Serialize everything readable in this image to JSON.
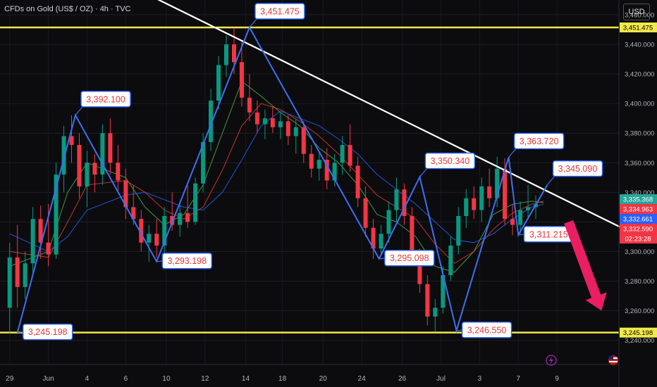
{
  "header": {
    "title": "CFDs on Gold (US$ / OZ) · 4h · TVC",
    "currency": "USD"
  },
  "chart_data": {
    "type": "candlestick",
    "ylim": [
      3236,
      3470
    ],
    "xlim": [
      -0.5,
      31.5
    ],
    "y_ticks": [
      3240,
      3260,
      3280,
      3300,
      3320,
      3340,
      3360,
      3380,
      3400,
      3420,
      3440,
      3460
    ],
    "y_tick_labels": [
      "3,240.000",
      "3,260.000",
      "3,280.000",
      "3,300.000",
      "3,320.000",
      "3,340.000",
      "3,360.000",
      "3,380.000",
      "3,400.000",
      "3,420.000",
      "3,440.000",
      "3,460.000"
    ],
    "x_ticks": [
      {
        "pos": 0,
        "label": "29"
      },
      {
        "pos": 2,
        "label": "Jun"
      },
      {
        "pos": 4,
        "label": "4"
      },
      {
        "pos": 6,
        "label": "6"
      },
      {
        "pos": 8.1,
        "label": "10"
      },
      {
        "pos": 10.1,
        "label": "12"
      },
      {
        "pos": 12.2,
        "label": "14"
      },
      {
        "pos": 14.1,
        "label": "18"
      },
      {
        "pos": 16.2,
        "label": "20"
      },
      {
        "pos": 18.2,
        "label": "24"
      },
      {
        "pos": 20.3,
        "label": "26"
      },
      {
        "pos": 22.3,
        "label": "Jul"
      },
      {
        "pos": 24.3,
        "label": "3"
      },
      {
        "pos": 26.3,
        "label": "7"
      },
      {
        "pos": 28.3,
        "label": "9"
      }
    ],
    "horizontal_levels": [
      {
        "value": 3451.475,
        "label": "3,451.475",
        "color": "#f2e84a"
      },
      {
        "value": 3245.198,
        "label": "3,245.198",
        "color": "#f2e84a"
      }
    ],
    "price_badges": [
      {
        "value": 3335.368,
        "label": "3,335.368",
        "bg": "#26a69a",
        "fg": "#ffffff"
      },
      {
        "value": 3334.963,
        "label": "3,334.963",
        "bg": "#f23645",
        "fg": "#ffffff"
      },
      {
        "value": 3332.661,
        "label": "3,332.661",
        "bg": "#2962ff",
        "fg": "#ffffff"
      },
      {
        "value": 3332.59,
        "label": "3,332.590",
        "bg": "#f23645",
        "fg": "#ffffff"
      }
    ],
    "countdown": "02:23:28",
    "trendline": {
      "from": [
        -0.2,
        3521
      ],
      "to": [
        31.8,
        3315
      ],
      "color": "#ffffff"
    },
    "zigzag": {
      "color": "#3d6ff5",
      "points": [
        {
          "x": 0.4,
          "y": 3245.198,
          "label": "3,245.198"
        },
        {
          "x": 3.4,
          "y": 3392.1,
          "label": "3,392.100"
        },
        {
          "x": 7.6,
          "y": 3293.198,
          "label": "3,293.198"
        },
        {
          "x": 12.4,
          "y": 3451.475,
          "label": "3,451.475"
        },
        {
          "x": 19.1,
          "y": 3295.098,
          "label": "3,295.098"
        },
        {
          "x": 21.2,
          "y": 3350.34,
          "label": "3,350.340"
        },
        {
          "x": 23.1,
          "y": 3246.55,
          "label": "3,246.550"
        },
        {
          "x": 25.8,
          "y": 3363.72,
          "label": "3,363.720"
        },
        {
          "x": 26.3,
          "y": 3311.215,
          "label": "3,311.215"
        },
        {
          "x": 27.8,
          "y": 3345.09,
          "label": "3,345.090"
        }
      ]
    },
    "forecast_arrow": {
      "from": [
        28.9,
        3320
      ],
      "to": [
        30.6,
        3260
      ],
      "color": "#e91e63"
    },
    "candles": [
      {
        "x": 0,
        "o": 3262,
        "h": 3306,
        "l": 3245,
        "c": 3296
      },
      {
        "x": 0.4,
        "o": 3296,
        "h": 3318,
        "l": 3262,
        "c": 3276
      },
      {
        "x": 0.8,
        "o": 3276,
        "h": 3300,
        "l": 3268,
        "c": 3292
      },
      {
        "x": 1.2,
        "o": 3292,
        "h": 3330,
        "l": 3284,
        "c": 3322
      },
      {
        "x": 1.6,
        "o": 3322,
        "h": 3331,
        "l": 3295,
        "c": 3306
      },
      {
        "x": 2.0,
        "o": 3306,
        "h": 3332,
        "l": 3290,
        "c": 3298
      },
      {
        "x": 2.4,
        "o": 3298,
        "h": 3360,
        "l": 3295,
        "c": 3352
      },
      {
        "x": 2.8,
        "o": 3352,
        "h": 3385,
        "l": 3340,
        "c": 3378
      },
      {
        "x": 3.2,
        "o": 3378,
        "h": 3392,
        "l": 3360,
        "c": 3372
      },
      {
        "x": 3.6,
        "o": 3372,
        "h": 3380,
        "l": 3336,
        "c": 3344
      },
      {
        "x": 4.0,
        "o": 3344,
        "h": 3368,
        "l": 3330,
        "c": 3360
      },
      {
        "x": 4.4,
        "o": 3360,
        "h": 3366,
        "l": 3340,
        "c": 3352
      },
      {
        "x": 4.8,
        "o": 3352,
        "h": 3386,
        "l": 3345,
        "c": 3380
      },
      {
        "x": 5.2,
        "o": 3380,
        "h": 3390,
        "l": 3352,
        "c": 3360
      },
      {
        "x": 5.6,
        "o": 3360,
        "h": 3372,
        "l": 3340,
        "c": 3348
      },
      {
        "x": 6.0,
        "o": 3348,
        "h": 3356,
        "l": 3322,
        "c": 3330
      },
      {
        "x": 6.4,
        "o": 3330,
        "h": 3345,
        "l": 3318,
        "c": 3322
      },
      {
        "x": 6.8,
        "o": 3322,
        "h": 3328,
        "l": 3300,
        "c": 3306
      },
      {
        "x": 7.2,
        "o": 3306,
        "h": 3318,
        "l": 3293,
        "c": 3312
      },
      {
        "x": 7.6,
        "o": 3312,
        "h": 3322,
        "l": 3296,
        "c": 3304
      },
      {
        "x": 8.0,
        "o": 3304,
        "h": 3330,
        "l": 3298,
        "c": 3324
      },
      {
        "x": 8.4,
        "o": 3324,
        "h": 3340,
        "l": 3314,
        "c": 3318
      },
      {
        "x": 8.8,
        "o": 3318,
        "h": 3332,
        "l": 3310,
        "c": 3326
      },
      {
        "x": 9.2,
        "o": 3326,
        "h": 3345,
        "l": 3316,
        "c": 3320
      },
      {
        "x": 9.6,
        "o": 3320,
        "h": 3350,
        "l": 3318,
        "c": 3346
      },
      {
        "x": 10.0,
        "o": 3346,
        "h": 3380,
        "l": 3340,
        "c": 3374
      },
      {
        "x": 10.4,
        "o": 3374,
        "h": 3410,
        "l": 3368,
        "c": 3402
      },
      {
        "x": 10.8,
        "o": 3402,
        "h": 3432,
        "l": 3396,
        "c": 3426
      },
      {
        "x": 11.2,
        "o": 3426,
        "h": 3446,
        "l": 3418,
        "c": 3440
      },
      {
        "x": 11.6,
        "o": 3440,
        "h": 3451,
        "l": 3420,
        "c": 3428
      },
      {
        "x": 12.0,
        "o": 3428,
        "h": 3442,
        "l": 3398,
        "c": 3404
      },
      {
        "x": 12.4,
        "o": 3404,
        "h": 3420,
        "l": 3388,
        "c": 3394
      },
      {
        "x": 12.8,
        "o": 3394,
        "h": 3402,
        "l": 3380,
        "c": 3386
      },
      {
        "x": 13.2,
        "o": 3386,
        "h": 3396,
        "l": 3376,
        "c": 3390
      },
      {
        "x": 13.6,
        "o": 3390,
        "h": 3398,
        "l": 3380,
        "c": 3384
      },
      {
        "x": 14.0,
        "o": 3384,
        "h": 3394,
        "l": 3376,
        "c": 3388
      },
      {
        "x": 14.4,
        "o": 3388,
        "h": 3392,
        "l": 3372,
        "c": 3378
      },
      {
        "x": 14.8,
        "o": 3378,
        "h": 3390,
        "l": 3366,
        "c": 3384
      },
      {
        "x": 15.2,
        "o": 3384,
        "h": 3388,
        "l": 3360,
        "c": 3366
      },
      {
        "x": 15.6,
        "o": 3366,
        "h": 3372,
        "l": 3350,
        "c": 3356
      },
      {
        "x": 16.0,
        "o": 3356,
        "h": 3368,
        "l": 3348,
        "c": 3362
      },
      {
        "x": 16.4,
        "o": 3362,
        "h": 3370,
        "l": 3342,
        "c": 3348
      },
      {
        "x": 16.8,
        "o": 3348,
        "h": 3366,
        "l": 3344,
        "c": 3360
      },
      {
        "x": 17.2,
        "o": 3360,
        "h": 3378,
        "l": 3352,
        "c": 3372
      },
      {
        "x": 17.6,
        "o": 3372,
        "h": 3386,
        "l": 3354,
        "c": 3358
      },
      {
        "x": 18.0,
        "o": 3358,
        "h": 3364,
        "l": 3330,
        "c": 3336
      },
      {
        "x": 18.4,
        "o": 3336,
        "h": 3344,
        "l": 3310,
        "c": 3316
      },
      {
        "x": 18.8,
        "o": 3316,
        "h": 3322,
        "l": 3295,
        "c": 3302
      },
      {
        "x": 19.2,
        "o": 3302,
        "h": 3318,
        "l": 3298,
        "c": 3312
      },
      {
        "x": 19.6,
        "o": 3312,
        "h": 3334,
        "l": 3306,
        "c": 3328
      },
      {
        "x": 20.0,
        "o": 3328,
        "h": 3350,
        "l": 3320,
        "c": 3342
      },
      {
        "x": 20.4,
        "o": 3342,
        "h": 3346,
        "l": 3318,
        "c": 3324
      },
      {
        "x": 20.8,
        "o": 3324,
        "h": 3330,
        "l": 3290,
        "c": 3296
      },
      {
        "x": 21.2,
        "o": 3296,
        "h": 3302,
        "l": 3272,
        "c": 3278
      },
      {
        "x": 21.6,
        "o": 3278,
        "h": 3284,
        "l": 3250,
        "c": 3256
      },
      {
        "x": 22.0,
        "o": 3256,
        "h": 3268,
        "l": 3246,
        "c": 3262
      },
      {
        "x": 22.4,
        "o": 3262,
        "h": 3290,
        "l": 3258,
        "c": 3284
      },
      {
        "x": 22.8,
        "o": 3284,
        "h": 3310,
        "l": 3280,
        "c": 3304
      },
      {
        "x": 23.2,
        "o": 3304,
        "h": 3330,
        "l": 3298,
        "c": 3324
      },
      {
        "x": 23.6,
        "o": 3324,
        "h": 3342,
        "l": 3316,
        "c": 3336
      },
      {
        "x": 24.0,
        "o": 3336,
        "h": 3344,
        "l": 3322,
        "c": 3328
      },
      {
        "x": 24.4,
        "o": 3328,
        "h": 3350,
        "l": 3320,
        "c": 3344
      },
      {
        "x": 24.8,
        "o": 3344,
        "h": 3356,
        "l": 3330,
        "c": 3336
      },
      {
        "x": 25.2,
        "o": 3336,
        "h": 3364,
        "l": 3330,
        "c": 3356
      },
      {
        "x": 25.6,
        "o": 3356,
        "h": 3363,
        "l": 3318,
        "c": 3322
      },
      {
        "x": 26.0,
        "o": 3322,
        "h": 3332,
        "l": 3311,
        "c": 3318
      },
      {
        "x": 26.4,
        "o": 3318,
        "h": 3334,
        "l": 3312,
        "c": 3328
      },
      {
        "x": 26.8,
        "o": 3328,
        "h": 3345,
        "l": 3322,
        "c": 3330
      },
      {
        "x": 27.2,
        "o": 3330,
        "h": 3338,
        "l": 3322,
        "c": 3332
      }
    ],
    "moving_averages": [
      {
        "color": "#4caf50",
        "points": [
          [
            0,
            3290
          ],
          [
            2,
            3300
          ],
          [
            3,
            3340
          ],
          [
            4,
            3360
          ],
          [
            6,
            3350
          ],
          [
            7,
            3330
          ],
          [
            8,
            3318
          ],
          [
            9,
            3325
          ],
          [
            10,
            3345
          ],
          [
            11,
            3380
          ],
          [
            12,
            3415
          ],
          [
            13,
            3405
          ],
          [
            14,
            3394
          ],
          [
            15,
            3385
          ],
          [
            16,
            3370
          ],
          [
            17,
            3360
          ],
          [
            18,
            3345
          ],
          [
            19,
            3325
          ],
          [
            20,
            3320
          ],
          [
            21,
            3310
          ],
          [
            22,
            3290
          ],
          [
            23,
            3286
          ],
          [
            24,
            3300
          ],
          [
            25,
            3325
          ],
          [
            26,
            3332
          ],
          [
            27,
            3334
          ],
          [
            27.6,
            3333
          ]
        ]
      },
      {
        "color": "#e53935",
        "points": [
          [
            0,
            3300
          ],
          [
            2,
            3296
          ],
          [
            3,
            3320
          ],
          [
            4,
            3345
          ],
          [
            6,
            3348
          ],
          [
            7,
            3340
          ],
          [
            8,
            3328
          ],
          [
            9,
            3322
          ],
          [
            10,
            3330
          ],
          [
            11,
            3355
          ],
          [
            12,
            3385
          ],
          [
            13,
            3400
          ],
          [
            14,
            3396
          ],
          [
            15,
            3388
          ],
          [
            16,
            3378
          ],
          [
            17,
            3366
          ],
          [
            18,
            3352
          ],
          [
            19,
            3338
          ],
          [
            20,
            3330
          ],
          [
            21,
            3322
          ],
          [
            22,
            3305
          ],
          [
            23,
            3292
          ],
          [
            24,
            3300
          ],
          [
            25,
            3315
          ],
          [
            26,
            3326
          ],
          [
            27,
            3332
          ],
          [
            27.6,
            3334
          ]
        ]
      },
      {
        "color": "#2962ff",
        "points": [
          [
            0,
            3312
          ],
          [
            2,
            3300
          ],
          [
            3,
            3310
          ],
          [
            4,
            3328
          ],
          [
            6,
            3338
          ],
          [
            7,
            3340
          ],
          [
            8,
            3335
          ],
          [
            9,
            3330
          ],
          [
            10,
            3328
          ],
          [
            11,
            3340
          ],
          [
            12,
            3362
          ],
          [
            13,
            3385
          ],
          [
            14,
            3395
          ],
          [
            15,
            3390
          ],
          [
            16,
            3385
          ],
          [
            17,
            3376
          ],
          [
            18,
            3366
          ],
          [
            19,
            3352
          ],
          [
            20,
            3342
          ],
          [
            21,
            3332
          ],
          [
            22,
            3320
          ],
          [
            23,
            3308
          ],
          [
            24,
            3306
          ],
          [
            25,
            3312
          ],
          [
            26,
            3322
          ],
          [
            27,
            3330
          ],
          [
            27.6,
            3332
          ]
        ]
      }
    ]
  }
}
